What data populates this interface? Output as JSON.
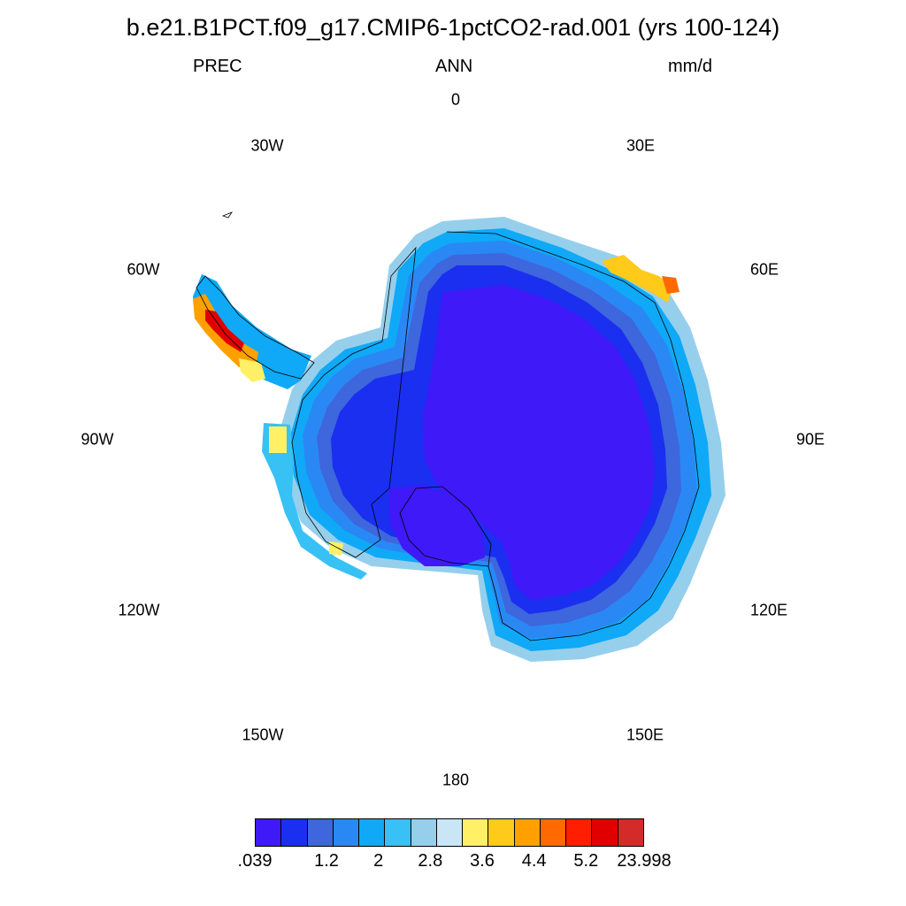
{
  "title": "b.e21.B1PCT.f09_g17.CMIP6-1pctCO2-rad.001 (yrs 100-124)",
  "subtitle": {
    "left": "PREC",
    "center": "ANN",
    "right": "mm/d"
  },
  "longitude_labels": [
    "0",
    "30E",
    "60E",
    "90E",
    "120E",
    "150E",
    "180",
    "150W",
    "120W",
    "90W",
    "60W",
    "30W"
  ],
  "colorbar": {
    "colors": [
      "#3f19f7",
      "#1a2ff0",
      "#3e66dd",
      "#2a88f5",
      "#0fa9f7",
      "#37c1f5",
      "#96cfec",
      "#c9e6f6",
      "#fff066",
      "#ffca1a",
      "#ffa000",
      "#ff6a00",
      "#ff1e00",
      "#e00000",
      "#d42a2a"
    ],
    "labels": [
      ".039",
      "1.2",
      "2",
      "2.8",
      "3.6",
      "4.4",
      "5.2",
      "23.998"
    ]
  },
  "map": {
    "projection": "south-polar-stereographic",
    "region": "Antarctica",
    "coastline_color": "#000000"
  }
}
